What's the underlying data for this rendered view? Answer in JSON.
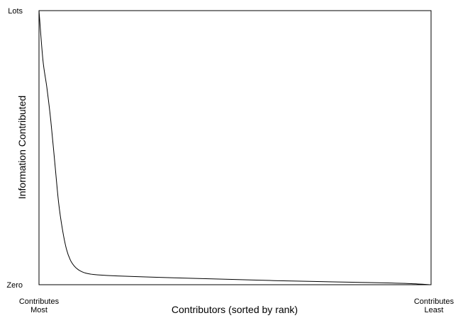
{
  "chart_data": {
    "type": "line",
    "title": "",
    "xlabel": "Contributors (sorted by rank)",
    "ylabel": "Information Contributed",
    "y_ticks": [
      "Lots",
      "Zero"
    ],
    "x_ticks": [
      [
        "Contributes",
        "Most"
      ],
      [
        "Contributes",
        "Least"
      ]
    ],
    "xlim": [
      0,
      1
    ],
    "ylim": [
      0,
      1
    ],
    "grid": false,
    "legend": "none",
    "line_color": "#000000",
    "series": [
      {
        "x": [
          0,
          0.01,
          0.02,
          0.03,
          0.04,
          0.05,
          0.06,
          0.07,
          0.08,
          0.09,
          0.1,
          0.11,
          0.12,
          0.13,
          0.15,
          0.2,
          0.3,
          0.4,
          0.5,
          0.6,
          0.7,
          0.8,
          0.9,
          0.95,
          1.0
        ],
        "y": [
          1.0,
          0.82,
          0.72,
          0.6,
          0.45,
          0.3,
          0.2,
          0.13,
          0.09,
          0.068,
          0.055,
          0.047,
          0.042,
          0.039,
          0.036,
          0.032,
          0.027,
          0.023,
          0.019,
          0.015,
          0.012,
          0.009,
          0.006,
          0.004,
          0.0
        ]
      }
    ]
  }
}
